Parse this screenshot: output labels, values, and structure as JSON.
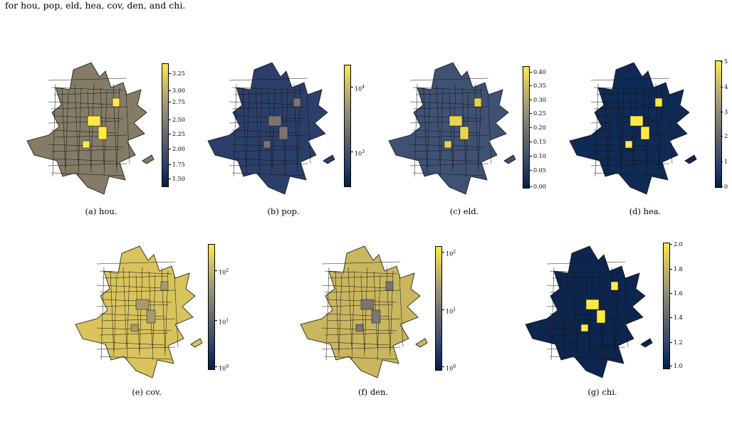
{
  "top_text": "for hou, pop, eld, hea, cov, den, and chi.",
  "panels": [
    {
      "id": "a",
      "caption": "(a) hou.",
      "fill": "#847c66",
      "accent": "#ffe945",
      "ticks": [
        "3.25",
        "3.00",
        "2.75",
        "2.50",
        "2.25",
        "2.00",
        "1.75",
        "1.50"
      ]
    },
    {
      "id": "b",
      "caption": "(b) pop.",
      "fill": "#2b3f6a",
      "accent": "#7a7570",
      "ticks": [
        "10",
        "4",
        "10",
        "3"
      ]
    },
    {
      "id": "c",
      "caption": "(c) eld.",
      "fill": "#3f5274",
      "accent": "#e9d34c",
      "ticks": [
        "0.40",
        "0.35",
        "0.30",
        "0.25",
        "0.20",
        "0.15",
        "0.10",
        "0.05",
        "0.00"
      ]
    },
    {
      "id": "d",
      "caption": "(d) hea.",
      "fill": "#0f2a55",
      "accent": "#ffe945",
      "ticks": [
        "5",
        "4",
        "3",
        "2",
        "1",
        "0"
      ]
    },
    {
      "id": "e",
      "caption": "(e) cov.",
      "fill": "#d9c35c",
      "accent": "#a69a6c",
      "ticks": [
        "10",
        "2",
        "10",
        "1",
        "10",
        "0"
      ]
    },
    {
      "id": "f",
      "caption": "(f) den.",
      "fill": "#c9b65f",
      "accent": "#7a7570",
      "ticks": [
        "10",
        "2",
        "10",
        "1",
        "10",
        "0"
      ]
    },
    {
      "id": "g",
      "caption": "(g) chi.",
      "fill": "#0d2650",
      "accent": "#ffe945",
      "ticks": [
        "2.0",
        "1.8",
        "1.6",
        "1.4",
        "1.2",
        "1.0"
      ]
    }
  ]
}
